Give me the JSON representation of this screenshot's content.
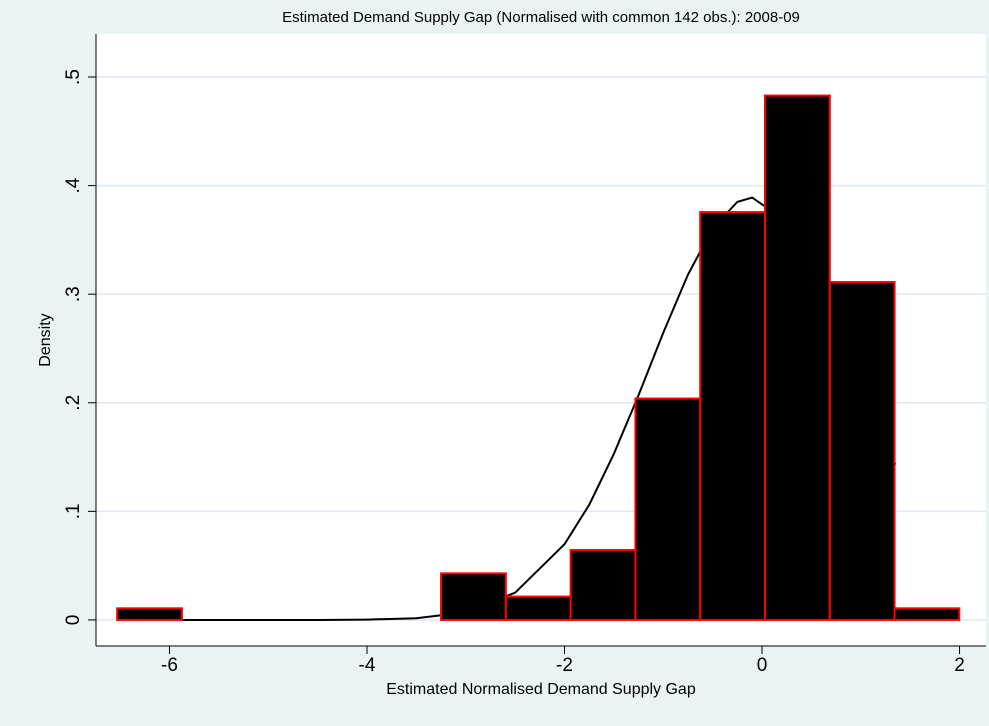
{
  "chart_data": {
    "type": "histogram",
    "title": "Estimated Demand Supply Gap (Normalised with common 142 obs.): 2008-09",
    "x_label": "Estimated Normalised Demand Supply Gap",
    "y_label": "Density",
    "bins": [
      -6.53,
      -5.874,
      -5.218,
      -4.562,
      -3.906,
      -3.25,
      -2.594,
      -1.938,
      -1.282,
      -0.626,
      0.03,
      0.686,
      1.342,
      1.998
    ],
    "values": [
      0.0107,
      0,
      0,
      0,
      0,
      0.0429,
      0.0215,
      0.0644,
      0.2039,
      0.3756,
      0.4829,
      0.3112,
      0.0107
    ],
    "color": "#000000",
    "edge_color": "#ff0000",
    "curve": {
      "color": "#000000",
      "x": [
        -5.9,
        -5,
        -4.5,
        -4,
        -3.5,
        -3,
        -2.5,
        -2,
        -1.75,
        -1.5,
        -1.25,
        -1,
        -0.75,
        -0.5,
        -0.25,
        -0.1,
        0.25,
        0.5,
        0.75,
        1,
        1.35
      ],
      "y": [
        0,
        0,
        0,
        0.0003,
        0.0016,
        0.0071,
        0.0251,
        0.0697,
        0.106,
        0.153,
        0.207,
        0.2645,
        0.318,
        0.3605,
        0.385,
        0.389,
        0.367,
        0.328,
        0.276,
        0.2187,
        0.143
      ]
    },
    "xlim": [
      -6.744,
      2.268
    ],
    "ylim": [
      -0.024,
      0.5396
    ],
    "xticks": [
      -6,
      -4,
      -2,
      0,
      2
    ],
    "yticks": [
      0,
      {
        "value": 0.1,
        "label": ".1"
      },
      {
        "value": 0.2,
        "label": ".2"
      },
      {
        "value": 0.3,
        "label": ".3"
      },
      {
        "value": 0.4,
        "label": ".4"
      },
      {
        "value": 0.5,
        "label": ".5"
      }
    ],
    "grid": true
  }
}
